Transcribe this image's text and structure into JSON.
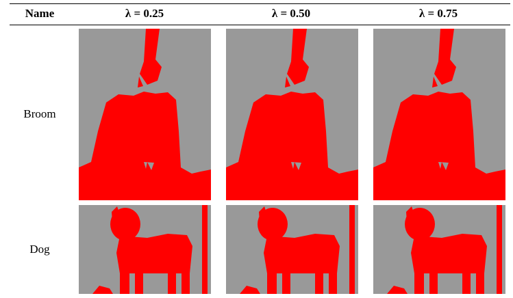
{
  "table": {
    "header": [
      "Name",
      "λ = 0.25",
      "λ = 0.50",
      "λ = 0.75"
    ],
    "rows": [
      [
        "Broom"
      ],
      [
        "Dog"
      ]
    ]
  }
}
